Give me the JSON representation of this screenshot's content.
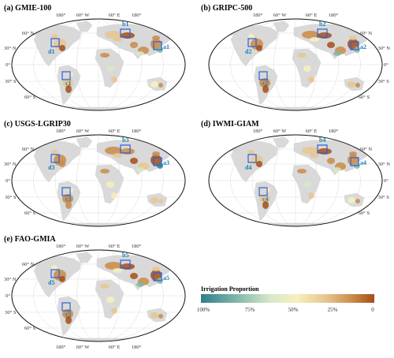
{
  "colorbar": {
    "title": "Irrigation Proportion",
    "ticks": [
      "100%",
      "75%",
      "50%",
      "25%",
      "0"
    ],
    "colors": [
      "#2e7e8c",
      "#7fb5a8",
      "#d6e8c9",
      "#f6f0bd",
      "#e6c690",
      "#c98946",
      "#a34e1a"
    ]
  },
  "lon_labels": [
    "180°",
    "60° W",
    "60° E",
    "180°"
  ],
  "lat_labels": [
    "60° N",
    "30° N",
    "0°",
    "30° S",
    "60° S"
  ],
  "panels": [
    {
      "title": "(a) GMIE-100",
      "lat_side": "left",
      "regions": {
        "a": "a1",
        "b": "b1",
        "c": "c1",
        "d": "d1"
      }
    },
    {
      "title": "(b) GRIPC-500",
      "lat_side": "right",
      "regions": {
        "a": "a2",
        "b": "b2",
        "c": "c2",
        "d": "d2"
      }
    },
    {
      "title": "(c) USGS-LGRIP30",
      "lat_side": "left",
      "regions": {
        "a": "a3",
        "b": "b3",
        "c": "c3",
        "d": "d3"
      }
    },
    {
      "title": "(d) IWMI-GIAM",
      "lat_side": "right",
      "regions": {
        "a": "a4",
        "b": "b4",
        "c": "c4",
        "d": "d4"
      }
    },
    {
      "title": "(e) FAO-GMIA",
      "lat_side": "left",
      "show_lon": true,
      "regions": {
        "a": "a5",
        "b": "b5",
        "c": "c5",
        "d": "d5"
      }
    }
  ]
}
